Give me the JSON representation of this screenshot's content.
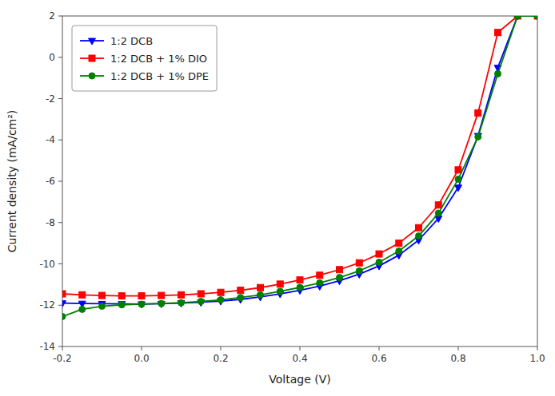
{
  "chart_data": {
    "type": "line",
    "xlabel": "Voltage (V)",
    "ylabel": "Current density (mA/cm²)",
    "xlim": [
      -0.2,
      1.0
    ],
    "ylim": [
      -14,
      2
    ],
    "xticks": [
      -0.2,
      {
        "value": 0.0,
        "label": "0.0"
      },
      0.2,
      0.4,
      0.6,
      0.8,
      {
        "value": 1.0,
        "label": "1.0"
      }
    ],
    "yticks": [
      -14,
      -12,
      -10,
      -8,
      -6,
      -4,
      -2,
      0,
      2
    ],
    "grid": false,
    "legend": "upper left",
    "x": [
      -0.2,
      -0.15,
      -0.1,
      -0.05,
      0.0,
      0.05,
      0.1,
      0.15,
      0.2,
      0.25,
      0.3,
      0.35,
      0.4,
      0.45,
      0.5,
      0.55,
      0.6,
      0.65,
      0.7,
      0.75,
      0.8,
      0.85,
      0.9,
      0.95,
      1.0
    ],
    "series": [
      {
        "name": "1:2 DCB",
        "color": "#0000FF",
        "marker": "triangle-down",
        "values": [
          -11.9,
          -11.92,
          -11.93,
          -11.94,
          -11.95,
          -11.93,
          -11.9,
          -11.86,
          -11.8,
          -11.72,
          -11.6,
          -11.45,
          -11.28,
          -11.08,
          -10.82,
          -10.5,
          -10.1,
          -9.58,
          -8.85,
          -7.8,
          -6.3,
          -3.8,
          -0.5,
          2.0,
          2.0
        ]
      },
      {
        "name": "1:2 DCB + 1% DIO",
        "color": "#FF0000",
        "marker": "square",
        "values": [
          -11.45,
          -11.5,
          -11.53,
          -11.55,
          -11.55,
          -11.53,
          -11.5,
          -11.45,
          -11.38,
          -11.28,
          -11.15,
          -10.98,
          -10.78,
          -10.55,
          -10.28,
          -9.95,
          -9.52,
          -9.0,
          -8.25,
          -7.15,
          -5.45,
          -2.7,
          1.2,
          2.0,
          2.0
        ]
      },
      {
        "name": "1:2 DCB + 1% DPE",
        "color": "#008000",
        "marker": "circle",
        "values": [
          -12.55,
          -12.2,
          -12.05,
          -11.98,
          -11.95,
          -11.92,
          -11.88,
          -11.82,
          -11.74,
          -11.63,
          -11.5,
          -11.33,
          -11.14,
          -10.92,
          -10.66,
          -10.34,
          -9.92,
          -9.38,
          -8.65,
          -7.55,
          -5.9,
          -3.85,
          -0.8,
          2.0,
          2.0
        ]
      }
    ]
  }
}
